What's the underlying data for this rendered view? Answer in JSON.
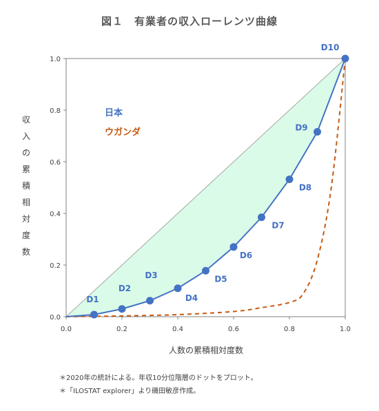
{
  "title": "図１　有業者の収入ローレンツ曲線",
  "notes": [
    "＊2020年の統計による。年収10分位階層のドットをプロット。",
    "＊「ILOSTAT explorer」より磯田敏彦作成。"
  ],
  "colors": {
    "japan": "#4472c4",
    "uganda": "#c55a11",
    "area_fill": "#dafbe8",
    "equality_line": "#a6a6a6"
  },
  "chart_data": {
    "type": "line",
    "title": "図１　有業者の収入ローレンツ曲線",
    "xlabel": "人数の累積相対度数",
    "ylabel": "収入の累積相対度数",
    "xlim": [
      0,
      1
    ],
    "ylim": [
      0,
      1
    ],
    "x_ticks": [
      "0.0",
      "0.2",
      "0.4",
      "0.6",
      "0.8",
      "1.0"
    ],
    "y_ticks": [
      "0.0",
      "0.2",
      "0.4",
      "0.6",
      "0.8",
      "1.0"
    ],
    "grid": false,
    "legend_position": "upper-left, inside plot",
    "series": [
      {
        "name": "日本",
        "style": "solid line with markers",
        "x": [
          0,
          0.1,
          0.2,
          0.3,
          0.4,
          0.5,
          0.6,
          0.7,
          0.8,
          0.9,
          1.0
        ],
        "y": [
          0,
          0.008,
          0.03,
          0.062,
          0.11,
          0.178,
          0.27,
          0.385,
          0.532,
          0.716,
          1.0
        ],
        "point_labels": [
          "",
          "D1",
          "D2",
          "D3",
          "D4",
          "D5",
          "D6",
          "D7",
          "D8",
          "D9",
          "D10"
        ]
      },
      {
        "name": "ウガンダ",
        "style": "dashed line",
        "x": [
          0,
          0.2,
          0.4,
          0.6,
          0.7,
          0.8,
          0.85,
          0.9,
          0.95,
          1.0
        ],
        "y": [
          0,
          0.003,
          0.008,
          0.02,
          0.035,
          0.055,
          0.09,
          0.22,
          0.5,
          1.0
        ]
      },
      {
        "name": "",
        "style": "equality line",
        "x": [
          0,
          1
        ],
        "y": [
          0,
          1
        ]
      }
    ]
  }
}
